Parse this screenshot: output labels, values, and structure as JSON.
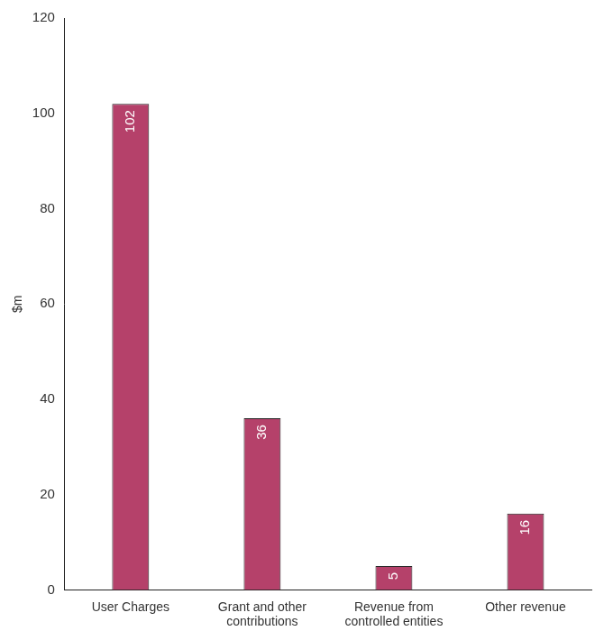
{
  "chart_data": {
    "type": "bar",
    "y_label": "$m",
    "categories": [
      "User Charges",
      "Grant and other contributions",
      "Revenue from controlled entities",
      "Other revenue"
    ],
    "values": [
      102,
      36,
      5,
      16
    ],
    "color": "#b5416a",
    "ylim": [
      0,
      120
    ],
    "yticks": [
      0,
      20,
      40,
      60,
      80,
      100,
      120
    ],
    "grid": false,
    "data_labels": true
  }
}
